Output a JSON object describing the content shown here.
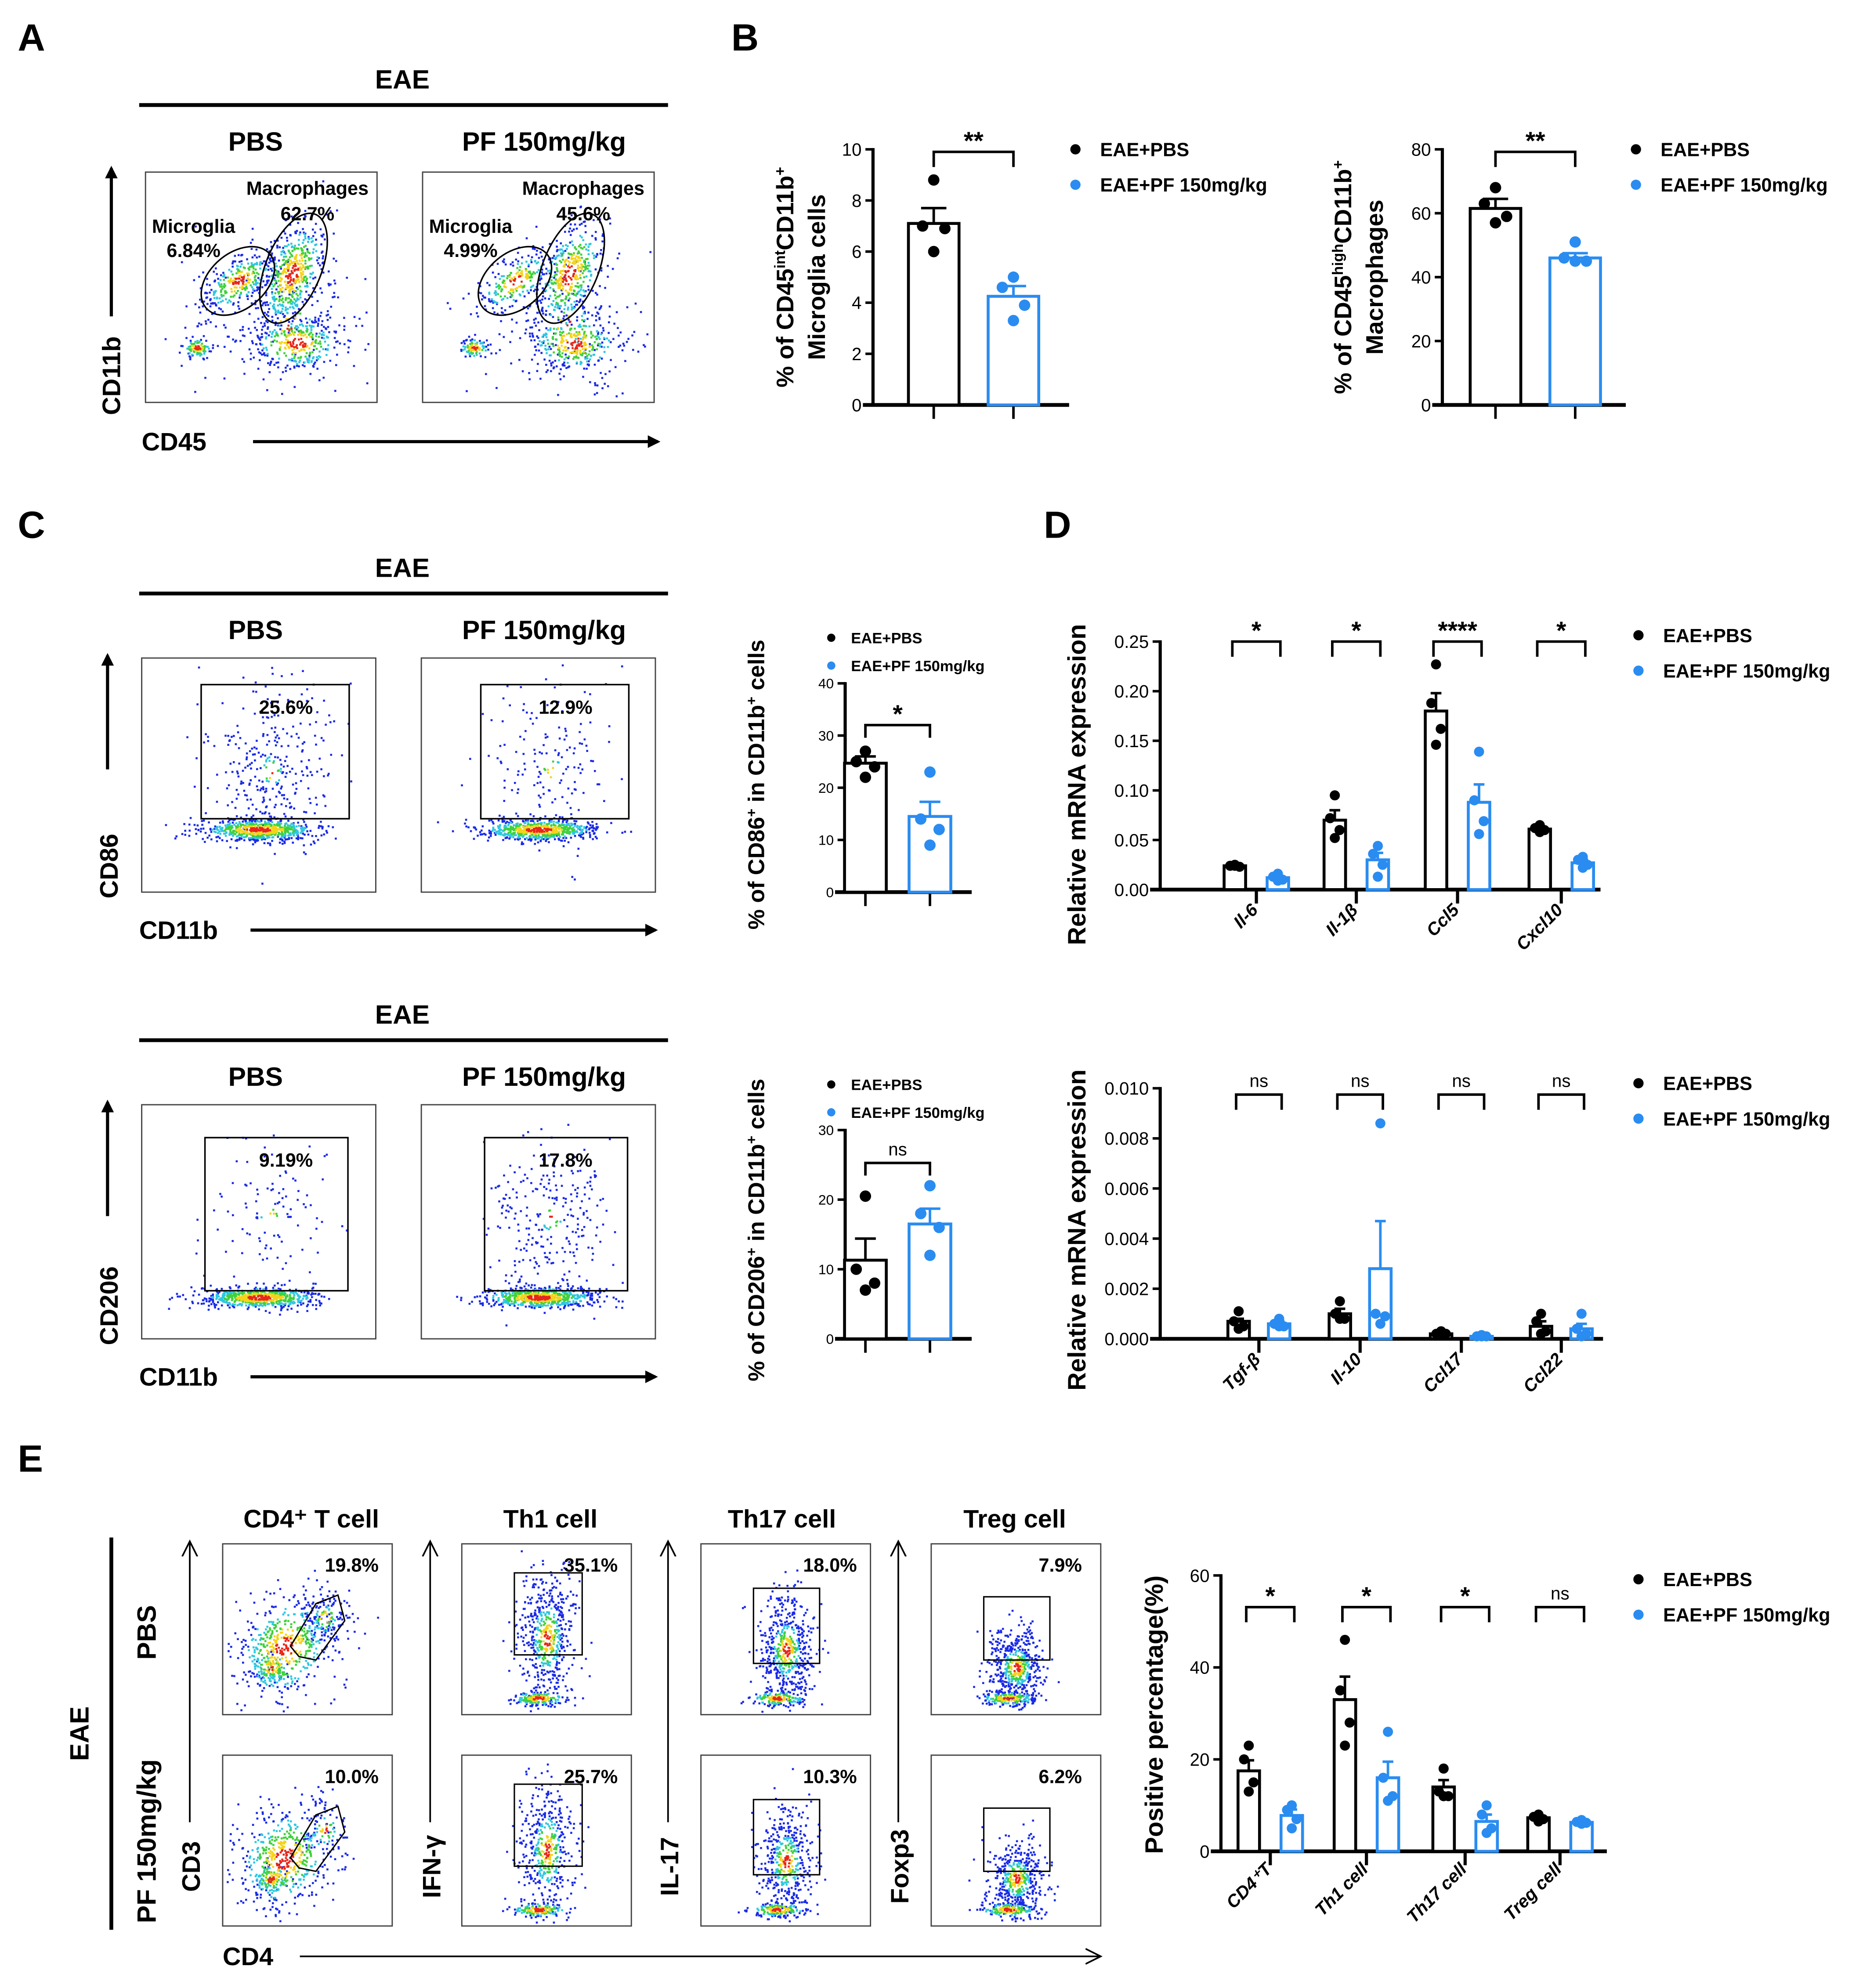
{
  "panel_labels": [
    "A",
    "B",
    "C",
    "D",
    "E"
  ],
  "legend": {
    "pbs": "EAE+PBS",
    "pf": "EAE+PF 150mg/kg"
  },
  "colors": {
    "pbs": "#000000",
    "pf": "#2a8cf0"
  },
  "panel_a": {
    "group": "EAE",
    "cols": [
      "PBS",
      "PF 150mg/kg"
    ],
    "y_axis": "CD11b",
    "x_axis": "CD45",
    "gates": [
      {
        "microglia_label": "Microglia",
        "microglia_pct": "6.84%",
        "macro_label": "Macrophages",
        "macro_pct": "62.7%"
      },
      {
        "microglia_label": "Microglia",
        "microglia_pct": "4.99%",
        "macro_label": "Macrophages",
        "macro_pct": "45.6%"
      }
    ]
  },
  "panel_c": {
    "top": {
      "group": "EAE",
      "cols": [
        "PBS",
        "PF 150mg/kg"
      ],
      "y_axis": "CD86",
      "x_axis": "CD11b",
      "pcts": [
        "25.6%",
        "12.9%"
      ]
    },
    "bottom": {
      "group": "EAE",
      "cols": [
        "PBS",
        "PF 150mg/kg"
      ],
      "y_axis": "CD206",
      "x_axis": "CD11b",
      "pcts": [
        "9.19%",
        "17.8%"
      ]
    }
  },
  "panel_e": {
    "group": "EAE",
    "rows": [
      "PBS",
      "PF 150mg/kg"
    ],
    "titles": [
      "CD4⁺ T cell",
      "Th1 cell",
      "Th17 cell",
      "Treg cell"
    ],
    "y_axes": [
      "CD3",
      "IFN-γ",
      "IL-17",
      "Foxp3"
    ],
    "x_axis": "CD4",
    "pcts": [
      [
        "19.8%",
        "35.1%",
        "18.0%",
        "7.9%"
      ],
      [
        "10.0%",
        "25.7%",
        "10.3%",
        "6.2%"
      ]
    ]
  },
  "chart_data": [
    {
      "id": "b_microglia",
      "type": "bar",
      "ylim": [
        0,
        10
      ],
      "yticks": [
        "0",
        "2",
        "4",
        "6",
        "8",
        "10"
      ],
      "ylabel": [
        [
          {
            "t": "% of CD45"
          },
          {
            "t": "int",
            "sup": true
          },
          {
            "t": "CD11b"
          },
          {
            "t": "+",
            "sup": true
          }
        ],
        [
          {
            "t": "Microglia cells"
          }
        ]
      ],
      "groups": [
        {
          "label": "",
          "sig": "**",
          "pbs": {
            "mean": 7.1,
            "sem": 0.6,
            "points": [
              8.8,
              7.0,
              6.9,
              6.0
            ]
          },
          "pf": {
            "mean": 4.25,
            "sem": 0.4,
            "points": [
              5.0,
              4.6,
              3.9,
              3.3
            ]
          }
        }
      ]
    },
    {
      "id": "b_macrophages",
      "type": "bar",
      "ylim": [
        0,
        80
      ],
      "yticks": [
        "0",
        "20",
        "40",
        "60",
        "80"
      ],
      "ylabel": [
        [
          {
            "t": "% of CD45"
          },
          {
            "t": "high",
            "sup": true
          },
          {
            "t": "CD11b"
          },
          {
            "t": "+",
            "sup": true
          }
        ],
        [
          {
            "t": "Macrophages"
          }
        ]
      ],
      "groups": [
        {
          "label": "",
          "sig": "**",
          "pbs": {
            "mean": 61.5,
            "sem": 3.0,
            "points": [
              68,
              63,
              59,
              57
            ]
          },
          "pf": {
            "mean": 46,
            "sem": 1.5,
            "points": [
              51,
              46,
              45,
              45
            ]
          }
        }
      ]
    },
    {
      "id": "c_cd86",
      "type": "bar",
      "ylim": [
        0,
        40
      ],
      "yticks": [
        "0",
        "10",
        "20",
        "30",
        "40"
      ],
      "ylabel": [
        [
          {
            "t": "% of CD86"
          },
          {
            "t": "+",
            "sup": true
          },
          {
            "t": " in CD11b"
          },
          {
            "t": "+",
            "sup": true
          },
          {
            "t": " cells"
          }
        ]
      ],
      "groups": [
        {
          "label": "",
          "sig": "*",
          "pbs": {
            "mean": 24.7,
            "sem": 1.3,
            "points": [
              27,
              25,
              24,
              22
            ]
          },
          "pf": {
            "mean": 14.5,
            "sem": 2.8,
            "points": [
              23,
              14,
              12,
              9
            ]
          }
        }
      ]
    },
    {
      "id": "c_cd206",
      "type": "bar",
      "ylim": [
        0,
        30
      ],
      "yticks": [
        "0",
        "10",
        "20",
        "30"
      ],
      "ylabel": [
        [
          {
            "t": "% of CD206"
          },
          {
            "t": "+",
            "sup": true
          },
          {
            "t": " in CD11b"
          },
          {
            "t": "+",
            "sup": true
          },
          {
            "t": " cells"
          }
        ]
      ],
      "groups": [
        {
          "label": "",
          "sig": "ns",
          "pbs": {
            "mean": 11.3,
            "sem": 3.1,
            "points": [
              20.5,
              10,
              8,
              7
            ]
          },
          "pf": {
            "mean": 16.5,
            "sem": 2.2,
            "points": [
              22,
              18,
              16,
              12
            ]
          }
        }
      ]
    },
    {
      "id": "d_proinflammatory",
      "type": "bar",
      "ylim": [
        0,
        0.25
      ],
      "yticks": [
        "0.00",
        "0.05",
        "0.10",
        "0.15",
        "0.20",
        "0.25"
      ],
      "ylabel": [
        [
          {
            "t": "Relative mRNA expression"
          }
        ]
      ],
      "groups": [
        {
          "label": "Il-6",
          "sig": "*",
          "pbs": {
            "mean": 0.024,
            "sem": 0.002,
            "points": [
              0.025,
              0.024,
              0.023,
              0.024
            ]
          },
          "pf": {
            "mean": 0.012,
            "sem": 0.002,
            "points": [
              0.016,
              0.013,
              0.01,
              0.009
            ]
          }
        },
        {
          "label": "Il-1β",
          "sig": "*",
          "pbs": {
            "mean": 0.07,
            "sem": 0.01,
            "points": [
              0.095,
              0.072,
              0.06,
              0.052
            ]
          },
          "pf": {
            "mean": 0.03,
            "sem": 0.007,
            "points": [
              0.044,
              0.036,
              0.025,
              0.013
            ]
          }
        },
        {
          "label": "Ccl5",
          "sig": "****",
          "pbs": {
            "mean": 0.18,
            "sem": 0.018,
            "points": [
              0.227,
              0.188,
              0.162,
              0.146
            ]
          },
          "pf": {
            "mean": 0.088,
            "sem": 0.018,
            "points": [
              0.139,
              0.09,
              0.069,
              0.056
            ]
          }
        },
        {
          "label": "Cxcl10",
          "sig": "*",
          "pbs": {
            "mean": 0.061,
            "sem": 0.002,
            "points": [
              0.065,
              0.062,
              0.06,
              0.058
            ]
          },
          "pf": {
            "mean": 0.027,
            "sem": 0.003,
            "points": [
              0.033,
              0.03,
              0.025,
              0.022
            ]
          }
        }
      ]
    },
    {
      "id": "d_antiinflammatory",
      "type": "bar",
      "ylim": [
        0,
        0.01
      ],
      "yticks": [
        "0.000",
        "0.002",
        "0.004",
        "0.006",
        "0.008",
        "0.010"
      ],
      "ylabel": [
        [
          {
            "t": "Relative mRNA expression"
          }
        ]
      ],
      "groups": [
        {
          "label": "Tgf-β",
          "sig": "ns",
          "pbs": {
            "mean": 0.0007,
            "sem": 0.0001,
            "points": [
              0.0011,
              0.0007,
              0.0005,
              0.0004
            ]
          },
          "pf": {
            "mean": 0.0006,
            "sem": 0.0001,
            "points": [
              0.0008,
              0.0006,
              0.0005,
              0.0005
            ]
          }
        },
        {
          "label": "Il-10",
          "sig": "ns",
          "pbs": {
            "mean": 0.001,
            "sem": 0.0002,
            "points": [
              0.0015,
              0.001,
              0.0008,
              0.0008
            ]
          },
          "pf": {
            "mean": 0.0028,
            "sem": 0.0019,
            "points": [
              0.0086,
              0.001,
              0.0009,
              0.0006
            ]
          }
        },
        {
          "label": "Ccl17",
          "sig": "ns",
          "pbs": {
            "mean": 0.0002,
            "sem": 3e-05,
            "points": [
              0.0003,
              0.0002,
              0.0002,
              0.0002
            ]
          },
          "pf": {
            "mean": 0.0001,
            "sem": 2e-05,
            "points": [
              0.00015,
              0.0001,
              0.0001,
              0.0001
            ]
          }
        },
        {
          "label": "Ccl22",
          "sig": "ns",
          "pbs": {
            "mean": 0.0005,
            "sem": 0.0002,
            "points": [
              0.001,
              0.0007,
              0.0003,
              0.0002
            ]
          },
          "pf": {
            "mean": 0.0004,
            "sem": 0.0002,
            "points": [
              0.001,
              0.0004,
              0.0002,
              0.0001
            ]
          }
        }
      ]
    },
    {
      "id": "e_tcells",
      "type": "bar",
      "ylim": [
        0,
        60
      ],
      "yticks": [
        "0",
        "20",
        "40",
        "60"
      ],
      "ylabel": [
        [
          {
            "t": "Positive percentage(%)"
          }
        ]
      ],
      "groups": [
        {
          "label": "CD4⁺T",
          "sig": "*",
          "pbs": {
            "mean": 17.5,
            "sem": 2.3,
            "points": [
              23,
              20,
              15,
              13
            ]
          },
          "pf": {
            "mean": 7.8,
            "sem": 1.3,
            "points": [
              10,
              9,
              7,
              5
            ]
          }
        },
        {
          "label": "Th1 cell",
          "sig": "*",
          "pbs": {
            "mean": 33,
            "sem": 5,
            "points": [
              46,
              35,
              28,
              23
            ]
          },
          "pf": {
            "mean": 16,
            "sem": 3.5,
            "points": [
              26,
              16,
              12,
              11
            ]
          }
        },
        {
          "label": "Th17 cell",
          "sig": "*",
          "pbs": {
            "mean": 14,
            "sem": 1.5,
            "points": [
              18,
              13,
              12,
              12
            ]
          },
          "pf": {
            "mean": 6.5,
            "sem": 1.5,
            "points": [
              10,
              8,
              5,
              4
            ]
          }
        },
        {
          "label": "Treg cell",
          "sig": "ns",
          "pbs": {
            "mean": 7.3,
            "sem": 0.5,
            "points": [
              8,
              7.5,
              7,
              6.5
            ]
          },
          "pf": {
            "mean": 6.3,
            "sem": 0.3,
            "points": [
              6.8,
              6.4,
              6.2,
              6.0
            ]
          }
        }
      ]
    }
  ]
}
